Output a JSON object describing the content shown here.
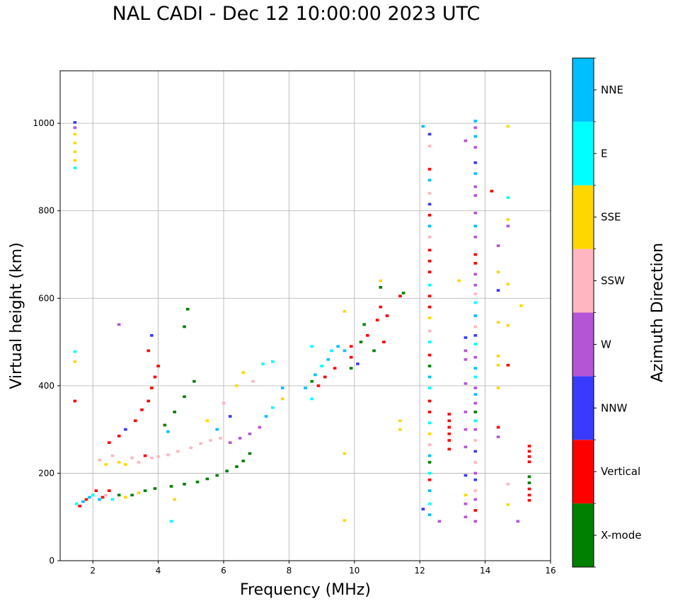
{
  "chart_data": {
    "type": "scatter",
    "title": "NAL CADI - Dec 12 10:00:00 2023 UTC",
    "xlabel": "Frequency (MHz)",
    "ylabel": "Virtual height (km)",
    "xlim": [
      1,
      16
    ],
    "ylim": [
      0,
      1120
    ],
    "xticks": [
      2,
      4,
      6,
      8,
      10,
      12,
      14,
      16
    ],
    "yticks": [
      0,
      200,
      400,
      600,
      800,
      1000
    ],
    "grid": true,
    "colorbar": {
      "label": "Azimuth Direction",
      "categories": [
        {
          "name": "X-mode",
          "color": "#008000"
        },
        {
          "name": "Vertical",
          "color": "#ff0000"
        },
        {
          "name": "NNW",
          "color": "#3a3aff"
        },
        {
          "name": "W",
          "color": "#b455d5"
        },
        {
          "name": "SSW",
          "color": "#ffb6c1"
        },
        {
          "name": "SSE",
          "color": "#ffd700"
        },
        {
          "name": "E",
          "color": "#00ffff"
        },
        {
          "name": "NNE",
          "color": "#00bfff"
        }
      ]
    },
    "point_size_mhz": 0.1,
    "point_size_km": 6,
    "points": [
      {
        "f": 1.45,
        "h": 1002,
        "c": "NNW"
      },
      {
        "f": 1.45,
        "h": 990,
        "c": "W"
      },
      {
        "f": 1.45,
        "h": 975,
        "c": "SSE"
      },
      {
        "f": 1.45,
        "h": 955,
        "c": "SSE"
      },
      {
        "f": 1.45,
        "h": 935,
        "c": "SSE"
      },
      {
        "f": 1.45,
        "h": 915,
        "c": "SSE"
      },
      {
        "f": 1.45,
        "h": 898,
        "c": "E"
      },
      {
        "f": 1.45,
        "h": 478,
        "c": "E"
      },
      {
        "f": 1.45,
        "h": 455,
        "c": "SSE"
      },
      {
        "f": 1.45,
        "h": 365,
        "c": "Vertical"
      },
      {
        "f": 1.5,
        "h": 130,
        "c": "E"
      },
      {
        "f": 1.6,
        "h": 125,
        "c": "Vertical"
      },
      {
        "f": 1.7,
        "h": 135,
        "c": "NNE"
      },
      {
        "f": 1.8,
        "h": 140,
        "c": "Vertical"
      },
      {
        "f": 1.9,
        "h": 145,
        "c": "NNE"
      },
      {
        "f": 2.0,
        "h": 150,
        "c": "E"
      },
      {
        "f": 2.1,
        "h": 160,
        "c": "Vertical"
      },
      {
        "f": 2.2,
        "h": 140,
        "c": "NNE"
      },
      {
        "f": 2.3,
        "h": 145,
        "c": "Vertical"
      },
      {
        "f": 2.4,
        "h": 150,
        "c": "SSW"
      },
      {
        "f": 2.5,
        "h": 160,
        "c": "Vertical"
      },
      {
        "f": 2.6,
        "h": 140,
        "c": "E"
      },
      {
        "f": 2.8,
        "h": 150,
        "c": "X-mode"
      },
      {
        "f": 3.0,
        "h": 145,
        "c": "SSE"
      },
      {
        "f": 3.2,
        "h": 150,
        "c": "X-mode"
      },
      {
        "f": 3.4,
        "h": 155,
        "c": "SSE"
      },
      {
        "f": 3.6,
        "h": 160,
        "c": "X-mode"
      },
      {
        "f": 3.9,
        "h": 165,
        "c": "X-mode"
      },
      {
        "f": 4.4,
        "h": 170,
        "c": "X-mode"
      },
      {
        "f": 4.8,
        "h": 175,
        "c": "X-mode"
      },
      {
        "f": 5.2,
        "h": 180,
        "c": "X-mode"
      },
      {
        "f": 5.5,
        "h": 187,
        "c": "X-mode"
      },
      {
        "f": 5.8,
        "h": 195,
        "c": "X-mode"
      },
      {
        "f": 6.1,
        "h": 205,
        "c": "X-mode"
      },
      {
        "f": 6.4,
        "h": 215,
        "c": "X-mode"
      },
      {
        "f": 6.6,
        "h": 228,
        "c": "X-mode"
      },
      {
        "f": 6.8,
        "h": 245,
        "c": "X-mode"
      },
      {
        "f": 2.2,
        "h": 230,
        "c": "SSW"
      },
      {
        "f": 2.4,
        "h": 220,
        "c": "SSE"
      },
      {
        "f": 2.6,
        "h": 240,
        "c": "SSW"
      },
      {
        "f": 2.8,
        "h": 225,
        "c": "SSE"
      },
      {
        "f": 3.0,
        "h": 220,
        "c": "SSE"
      },
      {
        "f": 3.2,
        "h": 235,
        "c": "SSW"
      },
      {
        "f": 3.4,
        "h": 225,
        "c": "SSW"
      },
      {
        "f": 3.6,
        "h": 240,
        "c": "Vertical"
      },
      {
        "f": 3.8,
        "h": 235,
        "c": "SSW"
      },
      {
        "f": 4.0,
        "h": 238,
        "c": "SSW"
      },
      {
        "f": 4.3,
        "h": 242,
        "c": "SSW"
      },
      {
        "f": 4.6,
        "h": 250,
        "c": "SSW"
      },
      {
        "f": 5.0,
        "h": 258,
        "c": "SSW"
      },
      {
        "f": 5.3,
        "h": 268,
        "c": "SSW"
      },
      {
        "f": 5.6,
        "h": 275,
        "c": "SSW"
      },
      {
        "f": 5.9,
        "h": 280,
        "c": "SSW"
      },
      {
        "f": 6.2,
        "h": 270,
        "c": "W"
      },
      {
        "f": 6.5,
        "h": 280,
        "c": "W"
      },
      {
        "f": 6.8,
        "h": 290,
        "c": "W"
      },
      {
        "f": 7.1,
        "h": 305,
        "c": "W"
      },
      {
        "f": 7.3,
        "h": 330,
        "c": "NNE"
      },
      {
        "f": 7.5,
        "h": 350,
        "c": "E"
      },
      {
        "f": 7.8,
        "h": 370,
        "c": "SSE"
      },
      {
        "f": 7.8,
        "h": 395,
        "c": "NNE"
      },
      {
        "f": 2.5,
        "h": 270,
        "c": "Vertical"
      },
      {
        "f": 2.8,
        "h": 285,
        "c": "Vertical"
      },
      {
        "f": 3.0,
        "h": 300,
        "c": "NNW"
      },
      {
        "f": 3.3,
        "h": 320,
        "c": "Vertical"
      },
      {
        "f": 3.5,
        "h": 345,
        "c": "Vertical"
      },
      {
        "f": 3.7,
        "h": 365,
        "c": "Vertical"
      },
      {
        "f": 3.8,
        "h": 395,
        "c": "Vertical"
      },
      {
        "f": 3.9,
        "h": 420,
        "c": "Vertical"
      },
      {
        "f": 4.0,
        "h": 445,
        "c": "Vertical"
      },
      {
        "f": 3.7,
        "h": 480,
        "c": "Vertical"
      },
      {
        "f": 3.8,
        "h": 515,
        "c": "NNW"
      },
      {
        "f": 4.2,
        "h": 310,
        "c": "X-mode"
      },
      {
        "f": 4.5,
        "h": 340,
        "c": "X-mode"
      },
      {
        "f": 4.8,
        "h": 375,
        "c": "X-mode"
      },
      {
        "f": 5.1,
        "h": 410,
        "c": "X-mode"
      },
      {
        "f": 4.9,
        "h": 575,
        "c": "X-mode"
      },
      {
        "f": 4.8,
        "h": 535,
        "c": "X-mode"
      },
      {
        "f": 2.8,
        "h": 540,
        "c": "W"
      },
      {
        "f": 4.3,
        "h": 295,
        "c": "NNE"
      },
      {
        "f": 4.5,
        "h": 140,
        "c": "SSE"
      },
      {
        "f": 4.4,
        "h": 90,
        "c": "E"
      },
      {
        "f": 5.5,
        "h": 320,
        "c": "SSE"
      },
      {
        "f": 6.0,
        "h": 360,
        "c": "SSW"
      },
      {
        "f": 6.4,
        "h": 400,
        "c": "SSE"
      },
      {
        "f": 6.6,
        "h": 430,
        "c": "SSE"
      },
      {
        "f": 6.9,
        "h": 410,
        "c": "SSW"
      },
      {
        "f": 7.2,
        "h": 450,
        "c": "E"
      },
      {
        "f": 7.5,
        "h": 455,
        "c": "E"
      },
      {
        "f": 6.2,
        "h": 330,
        "c": "NNW"
      },
      {
        "f": 5.8,
        "h": 300,
        "c": "NNE"
      },
      {
        "f": 8.5,
        "h": 395,
        "c": "NNE"
      },
      {
        "f": 8.7,
        "h": 410,
        "c": "X-mode"
      },
      {
        "f": 8.8,
        "h": 425,
        "c": "NNE"
      },
      {
        "f": 8.9,
        "h": 400,
        "c": "Vertical"
      },
      {
        "f": 9.0,
        "h": 445,
        "c": "E"
      },
      {
        "f": 9.1,
        "h": 420,
        "c": "Vertical"
      },
      {
        "f": 9.2,
        "h": 460,
        "c": "NNE"
      },
      {
        "f": 9.3,
        "h": 480,
        "c": "E"
      },
      {
        "f": 9.4,
        "h": 440,
        "c": "Vertical"
      },
      {
        "f": 9.5,
        "h": 490,
        "c": "NNE"
      },
      {
        "f": 8.7,
        "h": 370,
        "c": "E"
      },
      {
        "f": 8.7,
        "h": 490,
        "c": "E"
      },
      {
        "f": 9.7,
        "h": 570,
        "c": "SSE"
      },
      {
        "f": 9.7,
        "h": 480,
        "c": "NNE"
      },
      {
        "f": 9.7,
        "h": 245,
        "c": "SSE"
      },
      {
        "f": 9.7,
        "h": 92,
        "c": "SSE"
      },
      {
        "f": 9.9,
        "h": 440,
        "c": "X-mode"
      },
      {
        "f": 9.9,
        "h": 465,
        "c": "Vertical"
      },
      {
        "f": 9.9,
        "h": 490,
        "c": "Vertical"
      },
      {
        "f": 10.1,
        "h": 450,
        "c": "NNW"
      },
      {
        "f": 10.2,
        "h": 500,
        "c": "X-mode"
      },
      {
        "f": 10.3,
        "h": 540,
        "c": "X-mode"
      },
      {
        "f": 10.4,
        "h": 515,
        "c": "Vertical"
      },
      {
        "f": 10.6,
        "h": 480,
        "c": "X-mode"
      },
      {
        "f": 10.7,
        "h": 550,
        "c": "Vertical"
      },
      {
        "f": 10.8,
        "h": 580,
        "c": "Vertical"
      },
      {
        "f": 10.8,
        "h": 625,
        "c": "X-mode"
      },
      {
        "f": 10.8,
        "h": 640,
        "c": "SSE"
      },
      {
        "f": 10.9,
        "h": 500,
        "c": "Vertical"
      },
      {
        "f": 11.0,
        "h": 560,
        "c": "Vertical"
      },
      {
        "f": 11.4,
        "h": 605,
        "c": "Vertical"
      },
      {
        "f": 11.5,
        "h": 612,
        "c": "X-mode"
      },
      {
        "f": 11.4,
        "h": 320,
        "c": "SSE"
      },
      {
        "f": 11.4,
        "h": 300,
        "c": "SSE"
      },
      {
        "f": 12.1,
        "h": 993,
        "c": "NNE"
      },
      {
        "f": 12.3,
        "h": 975,
        "c": "NNW"
      },
      {
        "f": 12.3,
        "h": 948,
        "c": "SSW"
      },
      {
        "f": 12.3,
        "h": 895,
        "c": "Vertical"
      },
      {
        "f": 12.3,
        "h": 870,
        "c": "NNE"
      },
      {
        "f": 12.3,
        "h": 840,
        "c": "SSW"
      },
      {
        "f": 12.3,
        "h": 815,
        "c": "NNW"
      },
      {
        "f": 12.3,
        "h": 790,
        "c": "Vertical"
      },
      {
        "f": 12.3,
        "h": 765,
        "c": "NNE"
      },
      {
        "f": 12.3,
        "h": 740,
        "c": "SSW"
      },
      {
        "f": 12.3,
        "h": 710,
        "c": "Vertical"
      },
      {
        "f": 12.3,
        "h": 685,
        "c": "Vertical"
      },
      {
        "f": 12.3,
        "h": 660,
        "c": "Vertical"
      },
      {
        "f": 12.3,
        "h": 630,
        "c": "E"
      },
      {
        "f": 12.3,
        "h": 605,
        "c": "Vertical"
      },
      {
        "f": 12.3,
        "h": 580,
        "c": "Vertical"
      },
      {
        "f": 12.3,
        "h": 555,
        "c": "SSE"
      },
      {
        "f": 12.3,
        "h": 525,
        "c": "SSW"
      },
      {
        "f": 12.3,
        "h": 500,
        "c": "E"
      },
      {
        "f": 12.3,
        "h": 470,
        "c": "Vertical"
      },
      {
        "f": 12.3,
        "h": 445,
        "c": "X-mode"
      },
      {
        "f": 12.3,
        "h": 420,
        "c": "NNE"
      },
      {
        "f": 12.3,
        "h": 395,
        "c": "E"
      },
      {
        "f": 12.3,
        "h": 365,
        "c": "Vertical"
      },
      {
        "f": 12.3,
        "h": 340,
        "c": "Vertical"
      },
      {
        "f": 12.3,
        "h": 315,
        "c": "E"
      },
      {
        "f": 12.3,
        "h": 290,
        "c": "SSE"
      },
      {
        "f": 12.3,
        "h": 265,
        "c": "SSW"
      },
      {
        "f": 12.3,
        "h": 240,
        "c": "NNE"
      },
      {
        "f": 12.3,
        "h": 225,
        "c": "X-mode"
      },
      {
        "f": 12.3,
        "h": 200,
        "c": "E"
      },
      {
        "f": 12.3,
        "h": 185,
        "c": "Vertical"
      },
      {
        "f": 12.3,
        "h": 160,
        "c": "NNE"
      },
      {
        "f": 12.3,
        "h": 130,
        "c": "E"
      },
      {
        "f": 12.3,
        "h": 105,
        "c": "NNE"
      },
      {
        "f": 12.1,
        "h": 118,
        "c": "NNW"
      },
      {
        "f": 12.6,
        "h": 90,
        "c": "W"
      },
      {
        "f": 12.9,
        "h": 335,
        "c": "Vertical"
      },
      {
        "f": 12.9,
        "h": 320,
        "c": "Vertical"
      },
      {
        "f": 12.9,
        "h": 305,
        "c": "Vertical"
      },
      {
        "f": 12.9,
        "h": 290,
        "c": "Vertical"
      },
      {
        "f": 12.9,
        "h": 275,
        "c": "Vertical"
      },
      {
        "f": 12.9,
        "h": 255,
        "c": "Vertical"
      },
      {
        "f": 13.2,
        "h": 640,
        "c": "SSE"
      },
      {
        "f": 13.4,
        "h": 960,
        "c": "W"
      },
      {
        "f": 13.4,
        "h": 510,
        "c": "NNW"
      },
      {
        "f": 13.4,
        "h": 480,
        "c": "W"
      },
      {
        "f": 13.4,
        "h": 460,
        "c": "W"
      },
      {
        "f": 13.4,
        "h": 405,
        "c": "W"
      },
      {
        "f": 13.4,
        "h": 340,
        "c": "W"
      },
      {
        "f": 13.4,
        "h": 300,
        "c": "W"
      },
      {
        "f": 13.4,
        "h": 260,
        "c": "W"
      },
      {
        "f": 13.4,
        "h": 195,
        "c": "NNW"
      },
      {
        "f": 13.4,
        "h": 150,
        "c": "SSE"
      },
      {
        "f": 13.4,
        "h": 130,
        "c": "W"
      },
      {
        "f": 13.4,
        "h": 100,
        "c": "W"
      },
      {
        "f": 13.7,
        "h": 1005,
        "c": "NNE"
      },
      {
        "f": 13.7,
        "h": 990,
        "c": "W"
      },
      {
        "f": 13.7,
        "h": 970,
        "c": "NNE"
      },
      {
        "f": 13.7,
        "h": 945,
        "c": "W"
      },
      {
        "f": 13.7,
        "h": 910,
        "c": "NNW"
      },
      {
        "f": 13.7,
        "h": 885,
        "c": "NNE"
      },
      {
        "f": 13.7,
        "h": 855,
        "c": "W"
      },
      {
        "f": 13.7,
        "h": 835,
        "c": "W"
      },
      {
        "f": 13.7,
        "h": 795,
        "c": "W"
      },
      {
        "f": 13.7,
        "h": 765,
        "c": "NNE"
      },
      {
        "f": 13.7,
        "h": 740,
        "c": "W"
      },
      {
        "f": 13.7,
        "h": 700,
        "c": "Vertical"
      },
      {
        "f": 13.7,
        "h": 680,
        "c": "Vertical"
      },
      {
        "f": 13.7,
        "h": 655,
        "c": "W"
      },
      {
        "f": 13.7,
        "h": 630,
        "c": "W"
      },
      {
        "f": 13.7,
        "h": 610,
        "c": "SSW"
      },
      {
        "f": 13.7,
        "h": 590,
        "c": "E"
      },
      {
        "f": 13.7,
        "h": 560,
        "c": "NNE"
      },
      {
        "f": 13.7,
        "h": 535,
        "c": "SSW"
      },
      {
        "f": 13.7,
        "h": 515,
        "c": "NNW"
      },
      {
        "f": 13.7,
        "h": 495,
        "c": "E"
      },
      {
        "f": 13.7,
        "h": 465,
        "c": "W"
      },
      {
        "f": 13.7,
        "h": 440,
        "c": "NNE"
      },
      {
        "f": 13.7,
        "h": 420,
        "c": "E"
      },
      {
        "f": 13.7,
        "h": 395,
        "c": "W"
      },
      {
        "f": 13.7,
        "h": 380,
        "c": "NNE"
      },
      {
        "f": 13.7,
        "h": 360,
        "c": "W"
      },
      {
        "f": 13.7,
        "h": 340,
        "c": "X-mode"
      },
      {
        "f": 13.7,
        "h": 320,
        "c": "E"
      },
      {
        "f": 13.7,
        "h": 300,
        "c": "W"
      },
      {
        "f": 13.7,
        "h": 275,
        "c": "SSW"
      },
      {
        "f": 13.7,
        "h": 250,
        "c": "NNW"
      },
      {
        "f": 13.7,
        "h": 225,
        "c": "SSW"
      },
      {
        "f": 13.7,
        "h": 200,
        "c": "W"
      },
      {
        "f": 13.7,
        "h": 185,
        "c": "NNW"
      },
      {
        "f": 13.7,
        "h": 160,
        "c": "SSW"
      },
      {
        "f": 13.7,
        "h": 140,
        "c": "W"
      },
      {
        "f": 13.7,
        "h": 115,
        "c": "Vertical"
      },
      {
        "f": 13.7,
        "h": 90,
        "c": "W"
      },
      {
        "f": 14.2,
        "h": 845,
        "c": "Vertical"
      },
      {
        "f": 14.4,
        "h": 720,
        "c": "W"
      },
      {
        "f": 14.4,
        "h": 660,
        "c": "SSE"
      },
      {
        "f": 14.4,
        "h": 618,
        "c": "NNW"
      },
      {
        "f": 14.4,
        "h": 545,
        "c": "SSE"
      },
      {
        "f": 14.4,
        "h": 468,
        "c": "SSE"
      },
      {
        "f": 14.4,
        "h": 447,
        "c": "SSE"
      },
      {
        "f": 14.4,
        "h": 395,
        "c": "SSE"
      },
      {
        "f": 14.4,
        "h": 305,
        "c": "Vertical"
      },
      {
        "f": 14.4,
        "h": 283,
        "c": "W"
      },
      {
        "f": 14.7,
        "h": 993,
        "c": "SSE"
      },
      {
        "f": 14.7,
        "h": 830,
        "c": "E"
      },
      {
        "f": 14.7,
        "h": 780,
        "c": "SSE"
      },
      {
        "f": 14.7,
        "h": 765,
        "c": "W"
      },
      {
        "f": 14.7,
        "h": 632,
        "c": "SSE"
      },
      {
        "f": 14.7,
        "h": 538,
        "c": "SSE"
      },
      {
        "f": 14.7,
        "h": 447,
        "c": "Vertical"
      },
      {
        "f": 14.7,
        "h": 175,
        "c": "SSW"
      },
      {
        "f": 14.7,
        "h": 128,
        "c": "SSE"
      },
      {
        "f": 15.0,
        "h": 90,
        "c": "W"
      },
      {
        "f": 15.1,
        "h": 583,
        "c": "SSE"
      },
      {
        "f": 15.35,
        "h": 262,
        "c": "Vertical"
      },
      {
        "f": 15.35,
        "h": 250,
        "c": "Vertical"
      },
      {
        "f": 15.35,
        "h": 238,
        "c": "Vertical"
      },
      {
        "f": 15.35,
        "h": 226,
        "c": "Vertical"
      },
      {
        "f": 15.35,
        "h": 192,
        "c": "X-mode"
      },
      {
        "f": 15.35,
        "h": 178,
        "c": "X-mode"
      },
      {
        "f": 15.35,
        "h": 164,
        "c": "Vertical"
      },
      {
        "f": 15.35,
        "h": 150,
        "c": "Vertical"
      },
      {
        "f": 15.35,
        "h": 138,
        "c": "Vertical"
      }
    ]
  }
}
